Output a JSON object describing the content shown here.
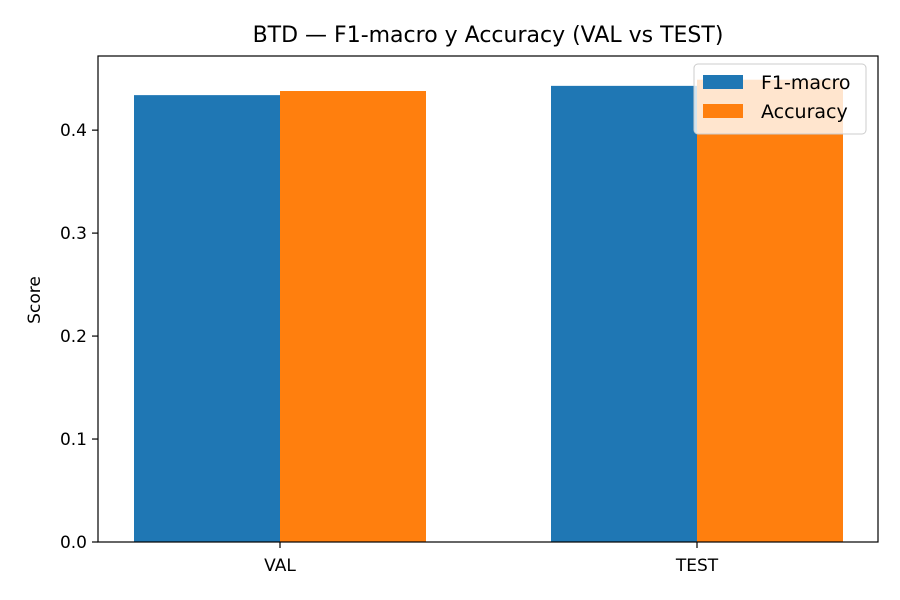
{
  "chart_data": {
    "type": "bar",
    "title": "BTD — F1-macro y Accuracy (VAL vs TEST)",
    "xlabel": "",
    "ylabel": "Score",
    "categories": [
      "VAL",
      "TEST"
    ],
    "series": [
      {
        "name": "F1-macro",
        "color": "#1f77b4",
        "values": [
          0.434,
          0.443
        ]
      },
      {
        "name": "Accuracy",
        "color": "#ff7f0e",
        "values": [
          0.438,
          0.449
        ]
      }
    ],
    "ylim": [
      0,
      0.472
    ],
    "yticks": [
      0.0,
      0.1,
      0.2,
      0.3,
      0.4
    ],
    "ytick_labels": [
      "0.0",
      "0.1",
      "0.2",
      "0.3",
      "0.4"
    ],
    "grid": false,
    "legend_position": "top-right"
  }
}
